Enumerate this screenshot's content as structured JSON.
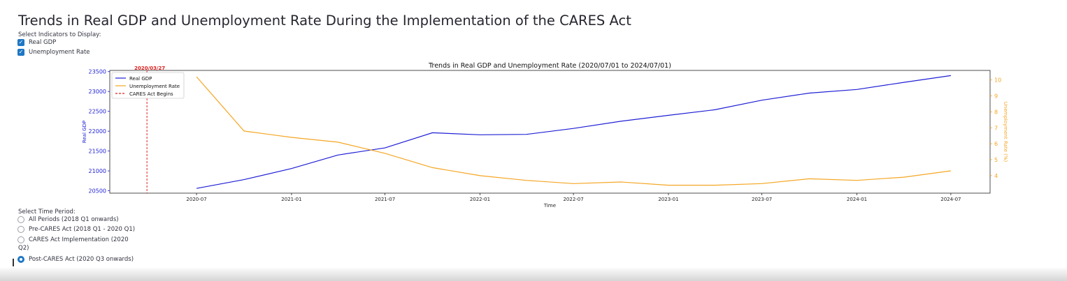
{
  "page": {
    "title": "Trends in Real GDP and Unemployment Rate During the Implementation of the CARES Act"
  },
  "indicators": {
    "label": "Select Indicators to Display:",
    "options": [
      {
        "label": "Real GDP",
        "checked": true
      },
      {
        "label": "Unemployment Rate",
        "checked": true
      }
    ]
  },
  "time_period": {
    "label": "Select Time Period:",
    "options": [
      {
        "label": "All Periods (2018 Q1 onwards)",
        "selected": false
      },
      {
        "label": "Pre-CARES Act (2018 Q1 - 2020 Q1)",
        "selected": false
      },
      {
        "label": "CARES Act Implementation (2020",
        "label_cont": "Q2)",
        "selected": false
      },
      {
        "label": "Post-CARES Act (2020 Q3 onwards)",
        "selected": true
      }
    ]
  },
  "chart_data": {
    "type": "line",
    "title": "Trends in Real GDP and Unemployment Rate (2020/07/01 to 2024/07/01)",
    "xlabel": "Time",
    "x": [
      "2020-07-01",
      "2020-10-01",
      "2021-01-01",
      "2021-04-01",
      "2021-07-01",
      "2021-10-01",
      "2022-01-01",
      "2022-04-01",
      "2022-07-01",
      "2022-10-01",
      "2023-01-01",
      "2023-04-01",
      "2023-07-01",
      "2023-10-01",
      "2024-01-01",
      "2024-04-01",
      "2024-07-01"
    ],
    "x_ticks": [
      "2020-07",
      "2021-01",
      "2021-07",
      "2022-01",
      "2022-07",
      "2023-01",
      "2023-07",
      "2024-01",
      "2024-07"
    ],
    "xlim": [
      "2020-01-15",
      "2024-09-15"
    ],
    "series": [
      {
        "name": "Real GDP",
        "axis": "left",
        "color": "#1f1fd6",
        "values": [
          20560,
          20780,
          21060,
          21400,
          21580,
          21960,
          21910,
          21920,
          22070,
          22250,
          22400,
          22540,
          22780,
          22960,
          23050,
          23230,
          23400
        ]
      },
      {
        "name": "Unemployment Rate",
        "axis": "right",
        "color": "#f5a623",
        "values": [
          10.2,
          6.8,
          6.4,
          6.1,
          5.4,
          4.5,
          4.0,
          3.7,
          3.5,
          3.6,
          3.4,
          3.4,
          3.5,
          3.8,
          3.7,
          3.9,
          4.3
        ]
      }
    ],
    "y_left": {
      "label": "Real GDP",
      "ylim": [
        20440,
        23530
      ],
      "ticks": [
        20500,
        21000,
        21500,
        22000,
        22500,
        23000,
        23500
      ],
      "color": "#1f1fd6"
    },
    "y_right": {
      "label": "Unemployment Rate (%)",
      "ylim": [
        2.9,
        10.6
      ],
      "ticks": [
        4,
        5,
        6,
        7,
        8,
        9,
        10
      ],
      "color": "#f5a623"
    },
    "event": {
      "name": "CARES Act Begins",
      "date": "2020-03-27",
      "label": "2020/03/27",
      "color": "#e02020"
    },
    "legend": {
      "placement": "top-left"
    },
    "grid": false
  }
}
